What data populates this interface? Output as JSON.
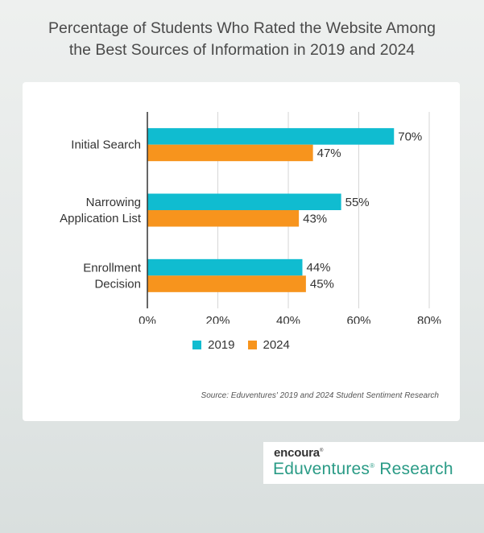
{
  "title": {
    "line1": "Percentage of Students Who Rated the Website Among",
    "line2": "the Best Sources of Information in 2019 and 2024"
  },
  "colors": {
    "2019": "#10bcd0",
    "2024": "#f7941d"
  },
  "chart_data": {
    "type": "bar",
    "orientation": "horizontal",
    "categories": [
      [
        "Initial Search"
      ],
      [
        "Narrowing",
        "Application List"
      ],
      [
        "Enrollment",
        "Decision"
      ]
    ],
    "series": [
      {
        "name": "2019",
        "values": [
          70,
          55,
          44
        ],
        "labels": [
          "70%",
          "55%",
          "44%"
        ]
      },
      {
        "name": "2024",
        "values": [
          47,
          43,
          45
        ],
        "labels": [
          "47%",
          "43%",
          "45%"
        ]
      }
    ],
    "xlim": [
      0,
      80
    ],
    "xticks": [
      "0%",
      "20%",
      "40%",
      "60%",
      "80%"
    ],
    "grid": "vertical",
    "legend_position": "bottom"
  },
  "legend": [
    "2019",
    "2024"
  ],
  "source": "Source: Eduventures' 2019 and 2024 Student Sentiment Research",
  "logo": {
    "brand": "encoura",
    "sub": "Eduventures",
    "sub2": "Research"
  }
}
